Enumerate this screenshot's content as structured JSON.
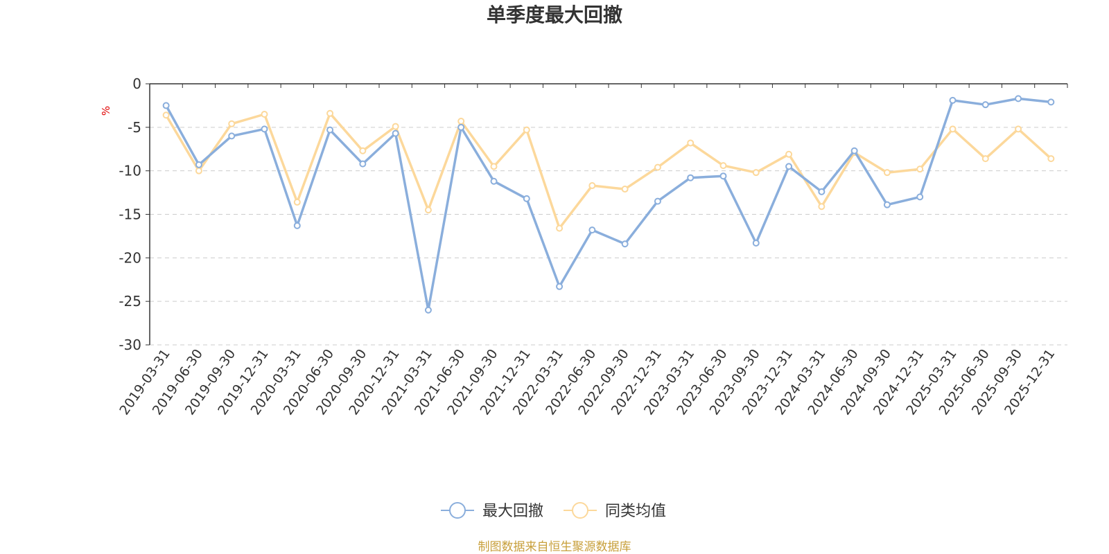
{
  "title": "单季度最大回撤",
  "source_note": "制图数据来自恒生聚源数据库",
  "colors": {
    "series1": "#8aaedc",
    "series2": "#fcd89b",
    "unit": "#e00000",
    "source": "#c8a03c"
  },
  "chart_data": {
    "type": "line",
    "title": "单季度最大回撤",
    "ylabel": "%",
    "ylim": [
      -30,
      0
    ],
    "yticks": [
      0,
      -5,
      -10,
      -15,
      -20,
      -25,
      -30
    ],
    "grid": true,
    "legend_position": "bottom-center",
    "categories": [
      "2019-03-31",
      "2019-06-30",
      "2019-09-30",
      "2019-12-31",
      "2020-03-31",
      "2020-06-30",
      "2020-09-30",
      "2020-12-31",
      "2021-03-31",
      "2021-06-30",
      "2021-09-30",
      "2021-12-31",
      "2022-03-31",
      "2022-06-30",
      "2022-09-30",
      "2022-12-31",
      "2023-03-31",
      "2023-06-30",
      "2023-09-30",
      "2023-12-31",
      "2024-03-31",
      "2024-06-30",
      "2024-09-30",
      "2024-12-31",
      "2025-03-31",
      "2025-06-30",
      "2025-09-30",
      "2025-12-31"
    ],
    "series": [
      {
        "name": "最大回撤",
        "color": "#8aaedc",
        "values": [
          -2.5,
          -9.3,
          -6.0,
          -5.2,
          -16.3,
          -5.3,
          -9.2,
          -5.7,
          -26.0,
          -5.0,
          -11.2,
          -13.2,
          -23.3,
          -16.8,
          -18.4,
          -13.5,
          -10.8,
          -10.6,
          -18.3,
          -9.5,
          -12.4,
          -7.7,
          -13.9,
          -13.0,
          -1.9,
          -2.4,
          -1.7,
          -2.1
        ]
      },
      {
        "name": "同类均值",
        "color": "#fcd89b",
        "values": [
          -3.6,
          -10.0,
          -4.6,
          -3.5,
          -13.6,
          -3.4,
          -7.7,
          -4.9,
          -14.5,
          -4.3,
          -9.5,
          -5.3,
          -16.6,
          -11.7,
          -12.1,
          -9.6,
          -6.8,
          -9.4,
          -10.2,
          -8.1,
          -14.1,
          -7.9,
          -10.2,
          -9.8,
          -5.2,
          -8.6,
          -5.2,
          -8.6
        ]
      }
    ]
  }
}
